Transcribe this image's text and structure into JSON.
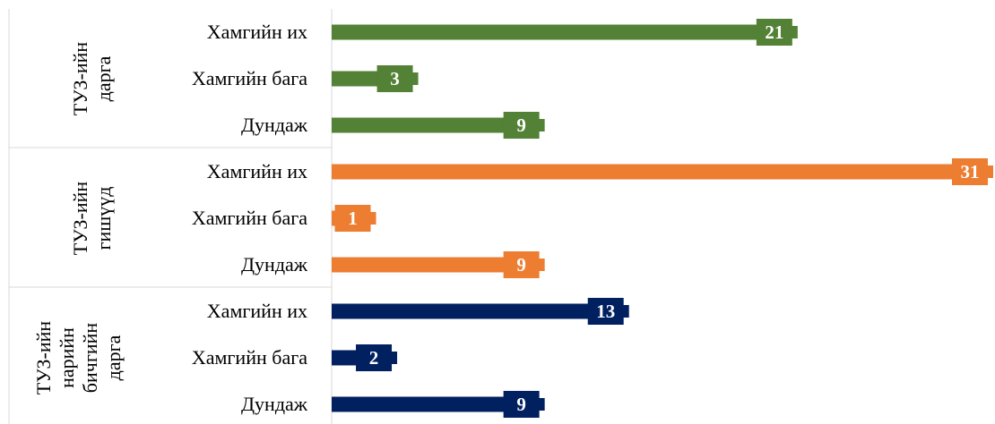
{
  "chart_data": {
    "type": "bar",
    "orientation": "horizontal",
    "title": "",
    "xlabel": "",
    "ylabel": "",
    "xlim": [
      0,
      31
    ],
    "grid": false,
    "legend": "none",
    "data_labels": true,
    "groups": [
      {
        "name": "ТУЗ-ийн дарга",
        "label_lines": [
          "ТУЗ-ийн",
          "дарга"
        ],
        "color": "#538135",
        "categories": [
          "Хамгийн их",
          "Хамгийн бага",
          "Дундаж"
        ],
        "values": [
          21,
          3,
          9
        ]
      },
      {
        "name": "ТУЗ-ийн гишүүд",
        "label_lines": [
          "ТУЗ-ийн",
          "гишүүд"
        ],
        "color": "#ED7D31",
        "categories": [
          "Хамгийн их",
          "Хамгийн бага",
          "Дундаж"
        ],
        "values": [
          31,
          1,
          9
        ]
      },
      {
        "name": "ТУЗ-ийн нарийн бичгийн дарга",
        "label_lines": [
          "ТУЗ-ийн",
          "нарийн",
          "бичгийн",
          "дарга"
        ],
        "color": "#002060",
        "categories": [
          "Хамгийн их",
          "Хамгийн бага",
          "Дундаж"
        ],
        "values": [
          13,
          2,
          9
        ]
      }
    ]
  }
}
